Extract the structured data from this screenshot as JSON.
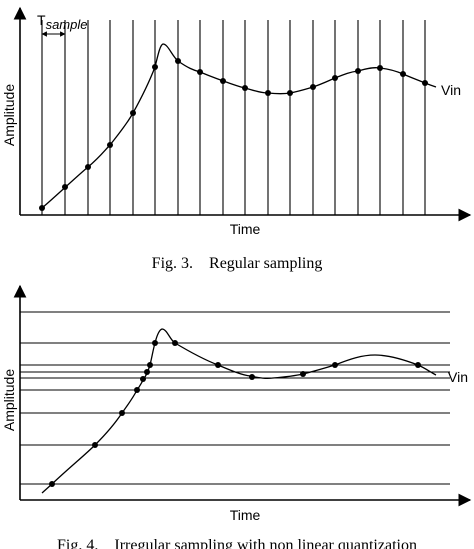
{
  "figures": [
    {
      "period_label": "T",
      "period_subscript": "sample",
      "y_axis_label": "Amplitude",
      "x_axis_label": "Time",
      "signal_label": "Vin",
      "caption": "Fig. 3.    Regular sampling"
    },
    {
      "y_axis_label": "Amplitude",
      "x_axis_label": "Time",
      "signal_label": "Vin",
      "caption": "Fig. 4.    Irregular sampling with non linear quantization"
    }
  ]
}
